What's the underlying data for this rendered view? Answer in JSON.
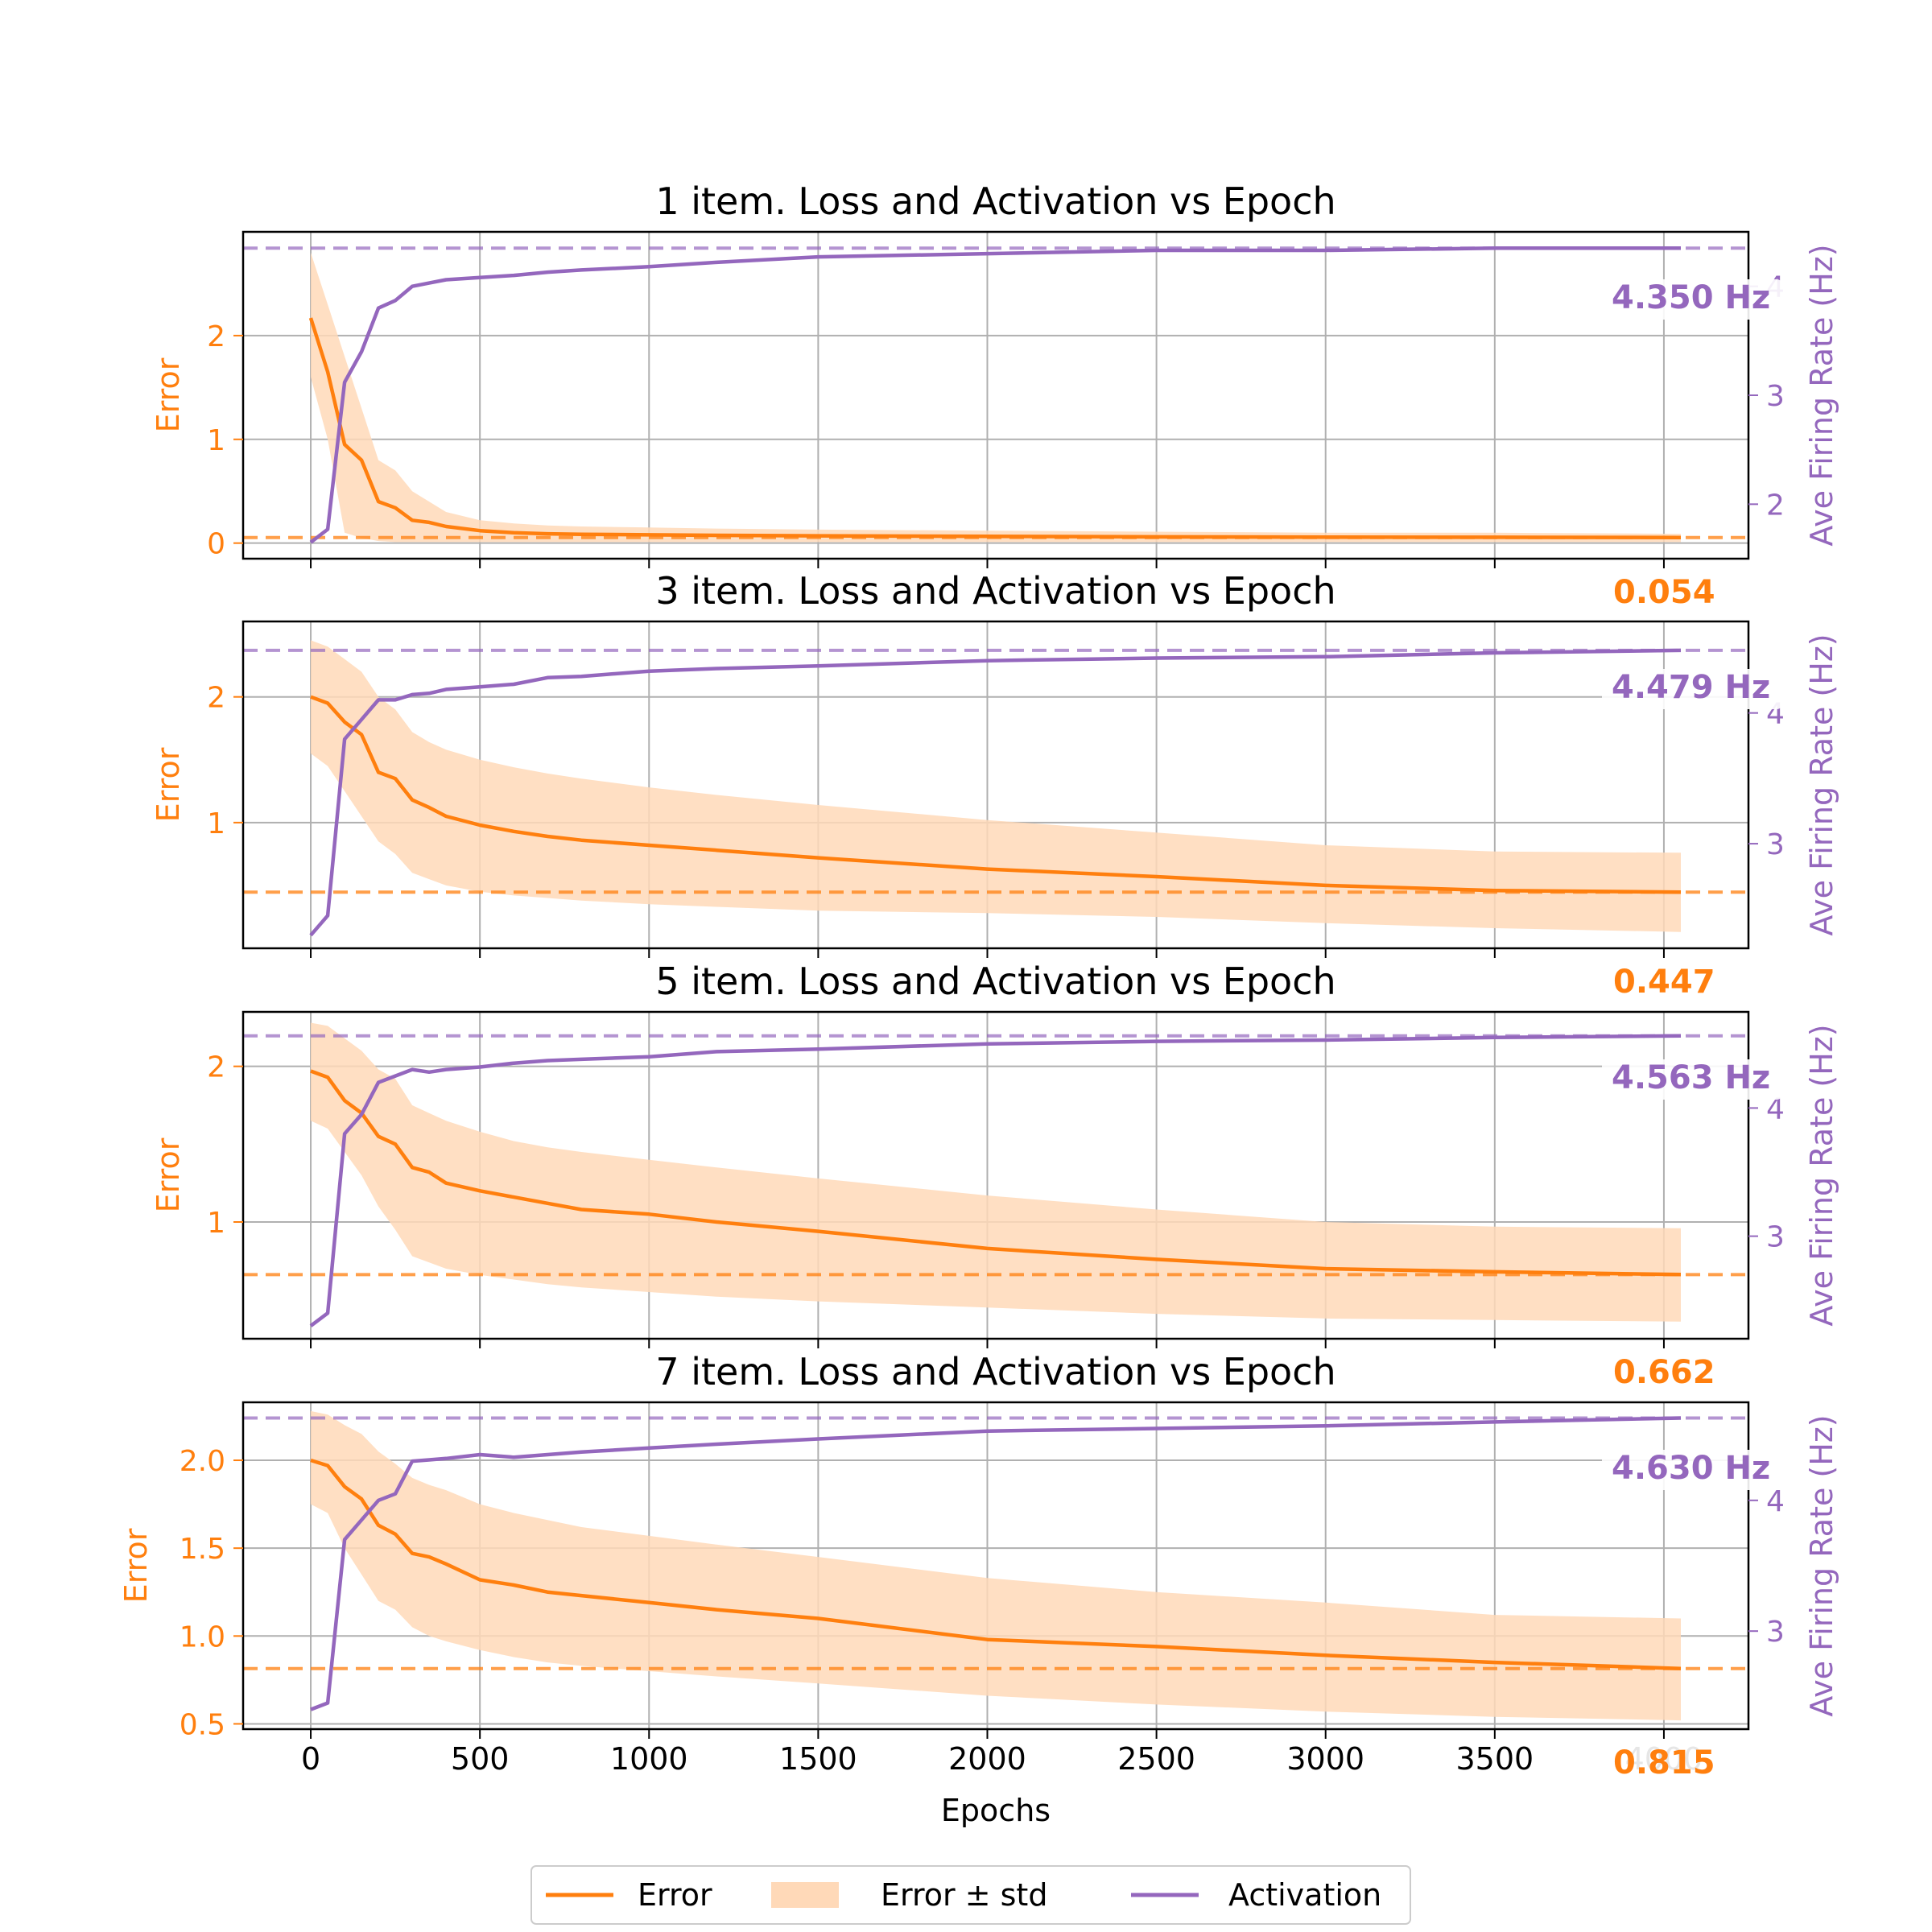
{
  "colors": {
    "error": "#ff7f0e",
    "activation": "#9467bd",
    "band": "#ffd9b8",
    "grid": "#b0b0b0"
  },
  "legend": {
    "error": "Error",
    "band": "Error ± std",
    "activation": "Activation"
  },
  "shared_xlabel": "Epochs",
  "chart_data": [
    {
      "type": "line",
      "title": "1 item. Loss and Activation vs Epoch",
      "ylabel_left": "Error",
      "ylabel_right": "Ave Firing Rate (Hz)",
      "xlim": [
        -200,
        4250
      ],
      "ylim_left": [
        -0.15,
        3.0
      ],
      "yticks_left": [
        "0",
        "1",
        "2"
      ],
      "ytick_values_left": [
        0,
        1,
        2
      ],
      "ylim_right": [
        1.5,
        4.5
      ],
      "yticks_right": [
        "2",
        "3",
        "4"
      ],
      "ytick_values_right": [
        2,
        3,
        4
      ],
      "x": [
        0,
        50,
        100,
        150,
        200,
        250,
        300,
        350,
        400,
        500,
        600,
        700,
        800,
        1000,
        1200,
        1500,
        2000,
        2500,
        3000,
        3500,
        4050
      ],
      "series": [
        {
          "name": "Error",
          "axis": "left",
          "values": [
            2.17,
            1.65,
            0.95,
            0.8,
            0.4,
            0.34,
            0.22,
            0.2,
            0.16,
            0.12,
            0.1,
            0.09,
            0.085,
            0.08,
            0.075,
            0.07,
            0.065,
            0.06,
            0.058,
            0.056,
            0.054
          ]
        },
        {
          "name": "Error ± std",
          "axis": "left",
          "lower": [
            1.6,
            1.0,
            0.1,
            0.05,
            0.02,
            0.01,
            0.01,
            0.01,
            0.01,
            0.01,
            0.01,
            0.01,
            0.01,
            0.01,
            0.01,
            0.01,
            0.01,
            0.01,
            0.01,
            0.01,
            0.01
          ],
          "upper": [
            2.8,
            2.3,
            1.8,
            1.3,
            0.8,
            0.7,
            0.5,
            0.4,
            0.3,
            0.22,
            0.19,
            0.17,
            0.16,
            0.15,
            0.14,
            0.13,
            0.12,
            0.11,
            0.1,
            0.1,
            0.09
          ]
        },
        {
          "name": "Activation",
          "axis": "right",
          "values": [
            1.65,
            1.77,
            3.12,
            3.4,
            3.8,
            3.87,
            4.0,
            4.03,
            4.06,
            4.08,
            4.1,
            4.13,
            4.15,
            4.18,
            4.22,
            4.27,
            4.3,
            4.33,
            4.33,
            4.35,
            4.35
          ]
        }
      ],
      "ref_activation": 4.35,
      "ref_error": 0.054,
      "label_activation": "4.350 Hz",
      "label_error": "0.054"
    },
    {
      "type": "line",
      "title": "3 item. Loss and Activation vs Epoch",
      "ylabel_left": "Error",
      "ylabel_right": "Ave Firing Rate (Hz)",
      "xlim": [
        -200,
        4250
      ],
      "ylim_left": [
        0.0,
        2.6
      ],
      "yticks_left": [
        "1",
        "2"
      ],
      "ytick_values_left": [
        1,
        2
      ],
      "ylim_right": [
        2.2,
        4.7
      ],
      "yticks_right": [
        "3",
        "4"
      ],
      "ytick_values_right": [
        3,
        4
      ],
      "x": [
        0,
        50,
        100,
        150,
        200,
        250,
        300,
        350,
        400,
        500,
        600,
        700,
        800,
        1000,
        1200,
        1500,
        2000,
        2500,
        3000,
        3500,
        4050
      ],
      "series": [
        {
          "name": "Error",
          "axis": "left",
          "values": [
            2.0,
            1.95,
            1.8,
            1.7,
            1.4,
            1.35,
            1.18,
            1.12,
            1.05,
            0.98,
            0.93,
            0.89,
            0.86,
            0.82,
            0.78,
            0.72,
            0.63,
            0.57,
            0.5,
            0.46,
            0.447
          ]
        },
        {
          "name": "Error ± std",
          "axis": "left",
          "lower": [
            1.55,
            1.45,
            1.25,
            1.05,
            0.85,
            0.75,
            0.6,
            0.55,
            0.5,
            0.45,
            0.42,
            0.4,
            0.38,
            0.35,
            0.33,
            0.3,
            0.28,
            0.25,
            0.2,
            0.16,
            0.13
          ],
          "upper": [
            2.45,
            2.4,
            2.3,
            2.2,
            2.0,
            1.9,
            1.72,
            1.64,
            1.58,
            1.5,
            1.44,
            1.39,
            1.35,
            1.28,
            1.22,
            1.14,
            1.02,
            0.92,
            0.82,
            0.77,
            0.76
          ]
        },
        {
          "name": "Activation",
          "axis": "right",
          "values": [
            2.3,
            2.45,
            3.8,
            3.95,
            4.1,
            4.1,
            4.14,
            4.15,
            4.18,
            4.2,
            4.22,
            4.27,
            4.28,
            4.32,
            4.34,
            4.36,
            4.4,
            4.42,
            4.43,
            4.46,
            4.479
          ]
        }
      ],
      "ref_activation": 4.479,
      "ref_error": 0.447,
      "label_activation": "4.479 Hz",
      "label_error": "0.447"
    },
    {
      "type": "line",
      "title": "5 item. Loss and Activation vs Epoch",
      "ylabel_left": "Error",
      "ylabel_right": "Ave Firing Rate (Hz)",
      "xlim": [
        -200,
        4250
      ],
      "ylim_left": [
        0.25,
        2.35
      ],
      "yticks_left": [
        "1",
        "2"
      ],
      "ytick_values_left": [
        1,
        2
      ],
      "ylim_right": [
        2.2,
        4.75
      ],
      "yticks_right": [
        "3",
        "4"
      ],
      "ytick_values_right": [
        3,
        4
      ],
      "x": [
        0,
        50,
        100,
        150,
        200,
        250,
        300,
        350,
        400,
        500,
        600,
        700,
        800,
        1000,
        1200,
        1500,
        2000,
        2500,
        3000,
        3500,
        4050
      ],
      "series": [
        {
          "name": "Error",
          "axis": "left",
          "values": [
            1.97,
            1.93,
            1.78,
            1.7,
            1.55,
            1.5,
            1.35,
            1.32,
            1.25,
            1.2,
            1.16,
            1.12,
            1.08,
            1.05,
            1.0,
            0.94,
            0.83,
            0.76,
            0.7,
            0.68,
            0.662
          ]
        },
        {
          "name": "Error ± std",
          "axis": "left",
          "lower": [
            1.65,
            1.6,
            1.45,
            1.3,
            1.1,
            0.95,
            0.78,
            0.74,
            0.7,
            0.66,
            0.63,
            0.6,
            0.58,
            0.55,
            0.52,
            0.49,
            0.45,
            0.41,
            0.38,
            0.37,
            0.36
          ],
          "upper": [
            2.28,
            2.26,
            2.18,
            2.1,
            1.98,
            1.92,
            1.75,
            1.7,
            1.65,
            1.58,
            1.52,
            1.48,
            1.45,
            1.4,
            1.35,
            1.28,
            1.17,
            1.08,
            1.0,
            0.97,
            0.96
          ]
        },
        {
          "name": "Activation",
          "axis": "right",
          "values": [
            2.3,
            2.4,
            3.8,
            3.95,
            4.2,
            4.25,
            4.3,
            4.28,
            4.3,
            4.32,
            4.35,
            4.37,
            4.38,
            4.4,
            4.44,
            4.46,
            4.5,
            4.52,
            4.53,
            4.55,
            4.563
          ]
        }
      ],
      "ref_activation": 4.563,
      "ref_error": 0.662,
      "label_activation": "4.563 Hz",
      "label_error": "0.662"
    },
    {
      "type": "line",
      "title": "7 item. Loss and Activation vs Epoch",
      "ylabel_left": "Error",
      "ylabel_right": "Ave Firing Rate (Hz)",
      "xlim": [
        -200,
        4250
      ],
      "ylim_left": [
        0.47,
        2.33
      ],
      "yticks_left": [
        "0.5",
        "1.0",
        "1.5",
        "2.0"
      ],
      "ytick_values_left": [
        0.5,
        1.0,
        1.5,
        2.0
      ],
      "ylim_right": [
        2.25,
        4.75
      ],
      "yticks_right": [
        "3",
        "4"
      ],
      "ytick_values_right": [
        3,
        4
      ],
      "x": [
        0,
        50,
        100,
        150,
        200,
        250,
        300,
        350,
        400,
        500,
        600,
        700,
        800,
        1000,
        1200,
        1500,
        2000,
        2500,
        3000,
        3500,
        4050
      ],
      "series": [
        {
          "name": "Error",
          "axis": "left",
          "values": [
            2.0,
            1.97,
            1.85,
            1.78,
            1.63,
            1.58,
            1.47,
            1.45,
            1.41,
            1.32,
            1.29,
            1.25,
            1.23,
            1.19,
            1.15,
            1.1,
            0.98,
            0.94,
            0.89,
            0.85,
            0.815
          ]
        },
        {
          "name": "Error ± std",
          "axis": "left",
          "lower": [
            1.75,
            1.7,
            1.5,
            1.35,
            1.2,
            1.15,
            1.05,
            1.0,
            0.97,
            0.92,
            0.88,
            0.85,
            0.83,
            0.8,
            0.77,
            0.73,
            0.66,
            0.61,
            0.57,
            0.54,
            0.52
          ],
          "upper": [
            2.28,
            2.26,
            2.2,
            2.15,
            2.05,
            1.98,
            1.9,
            1.86,
            1.83,
            1.75,
            1.7,
            1.66,
            1.62,
            1.57,
            1.52,
            1.45,
            1.33,
            1.25,
            1.19,
            1.12,
            1.1
          ]
        },
        {
          "name": "Activation",
          "axis": "right",
          "values": [
            2.4,
            2.45,
            3.7,
            3.85,
            4.0,
            4.05,
            4.3,
            4.31,
            4.32,
            4.35,
            4.33,
            4.35,
            4.37,
            4.4,
            4.43,
            4.47,
            4.53,
            4.55,
            4.57,
            4.6,
            4.63
          ]
        }
      ],
      "ref_activation": 4.63,
      "ref_error": 0.815,
      "label_activation": "4.630 Hz",
      "label_error": "0.815"
    }
  ],
  "xticks": [
    "0",
    "500",
    "1000",
    "1500",
    "2000",
    "2500",
    "3000",
    "3500",
    "4000"
  ],
  "xtick_values": [
    0,
    500,
    1000,
    1500,
    2000,
    2500,
    3000,
    3500,
    4000
  ]
}
